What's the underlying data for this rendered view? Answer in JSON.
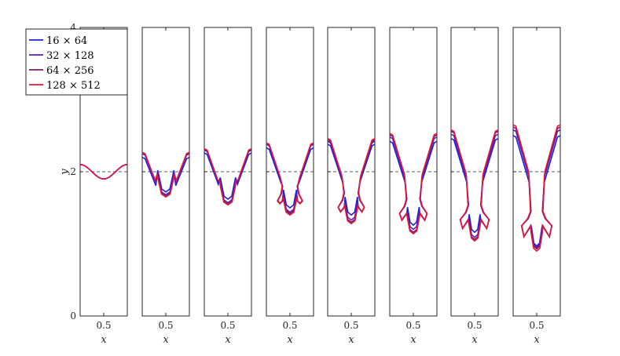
{
  "chart_data": {
    "type": "line",
    "panel_count": 8,
    "xlim": [
      0,
      1
    ],
    "ylim": [
      0,
      4
    ],
    "x_ticks": [
      0.5
    ],
    "x_tick_labels": [
      "0.5"
    ],
    "y_ticks": [
      0,
      2,
      4
    ],
    "y_tick_labels": [
      "0",
      "2",
      "4"
    ],
    "xlabel": "x",
    "ylabel": "y",
    "reference_line_y": 2,
    "legend_position": "top-left",
    "series": [
      {
        "name": "16 × 64",
        "color": "#1f1fdd",
        "spike_depth": [
          1.9,
          1.72,
          1.62,
          1.5,
          1.4,
          1.26,
          1.16,
          0.97
        ],
        "bubble_top": [
          2.1,
          2.2,
          2.26,
          2.33,
          2.38,
          2.42,
          2.46,
          2.5
        ]
      },
      {
        "name": "32 × 128",
        "color": "#5a1fb4",
        "spike_depth": [
          1.9,
          1.68,
          1.57,
          1.44,
          1.33,
          1.2,
          1.09,
          0.95
        ],
        "bubble_top": [
          2.1,
          2.25,
          2.3,
          2.38,
          2.42,
          2.48,
          2.52,
          2.58
        ]
      },
      {
        "name": "64 × 256",
        "color": "#7a1a6a",
        "spike_depth": [
          1.9,
          1.66,
          1.55,
          1.42,
          1.3,
          1.16,
          1.06,
          0.93
        ],
        "bubble_top": [
          2.1,
          2.26,
          2.31,
          2.39,
          2.44,
          2.51,
          2.56,
          2.62
        ]
      },
      {
        "name": "128 × 512",
        "color": "#e0163a",
        "spike_depth": [
          1.9,
          1.65,
          1.54,
          1.4,
          1.28,
          1.14,
          1.04,
          0.9
        ],
        "bubble_top": [
          2.1,
          2.27,
          2.32,
          2.4,
          2.46,
          2.53,
          2.58,
          2.65
        ]
      }
    ]
  }
}
